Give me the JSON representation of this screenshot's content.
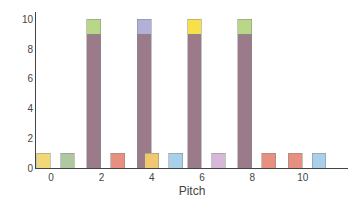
{
  "chart_data": {
    "type": "bar",
    "stacked": true,
    "grid": false,
    "xlabel": "Pitch",
    "x": [
      -0.3,
      0.65,
      1.7,
      2.65,
      3.7,
      4.0,
      4.95,
      5.7,
      6.65,
      7.7,
      8.65,
      9.7,
      10.65
    ],
    "series": [
      {
        "values": [
          1.0,
          1.0,
          9.0,
          1.0,
          9.0,
          1.0,
          1.0,
          9.0,
          1.0,
          9.0,
          1.0,
          1.0,
          1.0
        ],
        "colors": [
          "#f0d878",
          "#b0c8a0",
          "#9b7b8a",
          "#e89080",
          "#9b7b8a",
          "#f0c870",
          "#a8d0e8",
          "#9b7b8a",
          "#d8b8d8",
          "#9b7b8a",
          "#e89080",
          "#e89080",
          "#a8d0e8"
        ]
      },
      {
        "values": [
          null,
          null,
          1.0,
          null,
          1.0,
          null,
          null,
          1.0,
          null,
          1.0,
          null,
          null,
          null
        ],
        "colors": [
          null,
          null,
          "#b8d888",
          null,
          "#b0b0d8",
          null,
          null,
          "#f8e048",
          null,
          "#b8d888",
          null,
          null,
          null
        ]
      }
    ],
    "xlim": [
      -0.6,
      11.8
    ],
    "xticks": [
      0,
      2,
      4,
      6,
      8,
      10
    ],
    "ylim": [
      0,
      10.5
    ],
    "yticks": [
      0,
      2,
      4,
      6,
      8,
      10
    ]
  }
}
